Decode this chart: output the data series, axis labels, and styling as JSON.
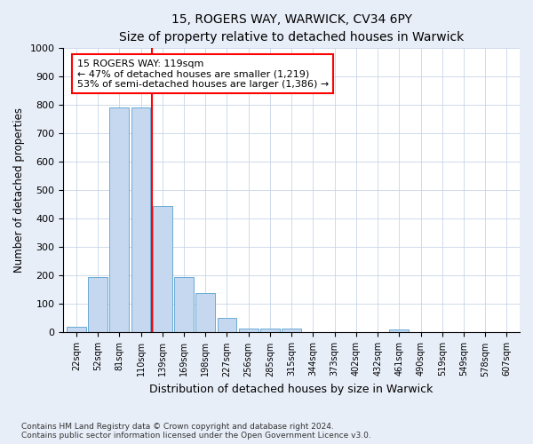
{
  "title1": "15, ROGERS WAY, WARWICK, CV34 6PY",
  "title2": "Size of property relative to detached houses in Warwick",
  "xlabel": "Distribution of detached houses by size in Warwick",
  "ylabel": "Number of detached properties",
  "bar_labels": [
    "22sqm",
    "52sqm",
    "81sqm",
    "110sqm",
    "139sqm",
    "169sqm",
    "198sqm",
    "227sqm",
    "256sqm",
    "285sqm",
    "315sqm",
    "344sqm",
    "373sqm",
    "402sqm",
    "432sqm",
    "461sqm",
    "490sqm",
    "519sqm",
    "549sqm",
    "578sqm",
    "607sqm"
  ],
  "bar_values": [
    20,
    195,
    790,
    790,
    445,
    195,
    140,
    50,
    15,
    13,
    13,
    0,
    0,
    0,
    0,
    10,
    0,
    0,
    0,
    0,
    0
  ],
  "bar_color": "#c5d8f0",
  "bar_edge_color": "#6aaad4",
  "vline_x": 3.5,
  "vline_color": "red",
  "annotation_text": "15 ROGERS WAY: 119sqm\n← 47% of detached houses are smaller (1,219)\n53% of semi-detached houses are larger (1,386) →",
  "annotation_box_color": "white",
  "annotation_box_edge": "red",
  "ylim": [
    0,
    1000
  ],
  "yticks": [
    0,
    100,
    200,
    300,
    400,
    500,
    600,
    700,
    800,
    900,
    1000
  ],
  "footnote": "Contains HM Land Registry data © Crown copyright and database right 2024.\nContains public sector information licensed under the Open Government Licence v3.0.",
  "bg_color": "#e8eef8",
  "plot_bg_color": "#ffffff",
  "grid_color": "#c8d4e8"
}
